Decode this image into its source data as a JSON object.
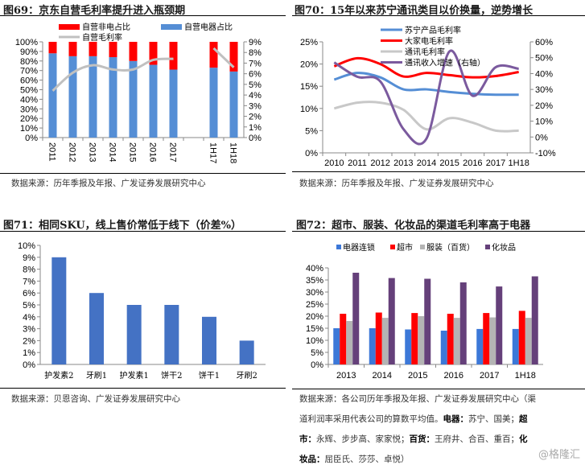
{
  "figures": [
    {
      "title": "图69：京东自营毛利率提升进入瓶颈期",
      "source": "数据来源：历年季报及年报、广发证券发展研究中心"
    },
    {
      "title": "图70：15年以来苏宁通讯类目以价换量，逆势增长",
      "source": "数据来源：历年季报及年报、广发证券发展研究中心"
    },
    {
      "title": "图71：相同SKU，线上售价常低于线下（价差%）",
      "source": "数据来源：贝恩咨询、广发证券发展研究中心"
    },
    {
      "title": "图72：超市、服装、化妆品的渠道毛利率高于电器",
      "source_lines": [
        "数据来源：各公司历年季报及年报、广发证券发展研究中心（渠",
        "道利润率采用代表公司的算数平均值。",
        "电器：",
        "苏宁、国美；",
        "超",
        "市：",
        "永辉、步步高、家家悦；",
        "百货：",
        "王府井、合百、重百；",
        "化",
        "妆品：",
        "屈臣氏、莎莎、卓悦）"
      ]
    }
  ],
  "watermark": "@格隆汇",
  "chart_data": [
    {
      "type": "bar",
      "stacked": true,
      "categories": [
        "2011",
        "2012",
        "2013",
        "2014",
        "2015",
        "2016",
        "2017",
        "",
        "1H17",
        "1H18"
      ],
      "series": [
        {
          "name": "自营非电占比",
          "color": "#ff0000",
          "values": [
            12,
            15,
            15,
            16,
            20,
            24,
            29,
            null,
            27,
            31
          ]
        },
        {
          "name": "自营电器占比",
          "color": "#558ed5",
          "values": [
            88,
            85,
            85,
            84,
            80,
            76,
            71,
            null,
            73,
            69
          ]
        },
        {
          "name": "自营毛利率",
          "color": "#c0c0c0",
          "axis": "right",
          "type": "line",
          "values": [
            4.4,
            6.1,
            6.8,
            6.4,
            6.4,
            7.3,
            7.4,
            null,
            8.4,
            6.6
          ]
        }
      ],
      "yticks": [
        "0%",
        "10%",
        "20%",
        "30%",
        "40%",
        "50%",
        "60%",
        "70%",
        "80%",
        "90%",
        "100%"
      ],
      "ylim": [
        0,
        100
      ],
      "y2ticks": [
        "0%",
        "1%",
        "2%",
        "3%",
        "4%",
        "5%",
        "6%",
        "7%",
        "8%",
        "9%"
      ],
      "y2lim": [
        0,
        9
      ]
    },
    {
      "type": "line",
      "categories": [
        "2010",
        "2011",
        "2012",
        "2013",
        "2014",
        "2015",
        "2016",
        "2017",
        "1H18"
      ],
      "series": [
        {
          "name": "苏宁产品毛利率",
          "color": "#558ed5",
          "values": [
            16.5,
            18,
            17,
            14.3,
            14.3,
            13.7,
            13.3,
            13.1,
            13.1
          ]
        },
        {
          "name": "大家电毛利率",
          "color": "#ff0000",
          "values": [
            19.5,
            21.3,
            20,
            17.2,
            18,
            17.5,
            17,
            17.3,
            18.2
          ]
        },
        {
          "name": "通讯毛利率",
          "color": "#c8c8c8",
          "values": [
            10,
            11.3,
            11.3,
            9.7,
            5.3,
            7.8,
            6.8,
            5,
            5
          ]
        },
        {
          "name": "通讯收入增速（右轴）",
          "color": "#7b5a9e",
          "axis": "right",
          "values": [
            47,
            38,
            35,
            5,
            -1,
            54,
            26,
            44,
            43
          ]
        }
      ],
      "yticks": [
        "0%",
        "5%",
        "10%",
        "15%",
        "20%",
        "25%"
      ],
      "ylim": [
        0,
        25
      ],
      "y2ticks": [
        "-10%",
        "0%",
        "10%",
        "20%",
        "30%",
        "40%",
        "50%",
        "60%"
      ],
      "y2lim": [
        -10,
        60
      ]
    },
    {
      "type": "bar",
      "categories": [
        "护发素2",
        "牙刷1",
        "护发素1",
        "饼干2",
        "饼干1",
        "牙刷2"
      ],
      "series": [
        {
          "name": "价差",
          "color": "#4472c4",
          "values": [
            9,
            6,
            5,
            5,
            4,
            2
          ]
        }
      ],
      "yticks": [
        "0%",
        "1%",
        "2%",
        "3%",
        "4%",
        "5%",
        "6%",
        "7%",
        "8%",
        "9%",
        "10%"
      ],
      "ylim": [
        0,
        10
      ]
    },
    {
      "type": "bar",
      "categories": [
        "2013",
        "2014",
        "2015",
        "2016",
        "2017",
        "1H18"
      ],
      "series": [
        {
          "name": "电器连锁",
          "color": "#3c78d8",
          "values": [
            15,
            15,
            14.5,
            14,
            14.7,
            14.7
          ]
        },
        {
          "name": "超市",
          "color": "#ff0000",
          "values": [
            21,
            21.5,
            21.3,
            21,
            21.3,
            22.2
          ]
        },
        {
          "name": "服装（百货）",
          "color": "#b4b4b4",
          "values": [
            18,
            19.3,
            20,
            19.3,
            19.5,
            19.3
          ]
        },
        {
          "name": "化妆品",
          "color": "#65407a",
          "values": [
            38,
            35.8,
            35.5,
            34,
            32.3,
            36.5
          ]
        }
      ],
      "yticks": [
        "0%",
        "5%",
        "10%",
        "15%",
        "20%",
        "25%",
        "30%",
        "35%",
        "40%"
      ],
      "ylim": [
        0,
        40
      ]
    }
  ]
}
